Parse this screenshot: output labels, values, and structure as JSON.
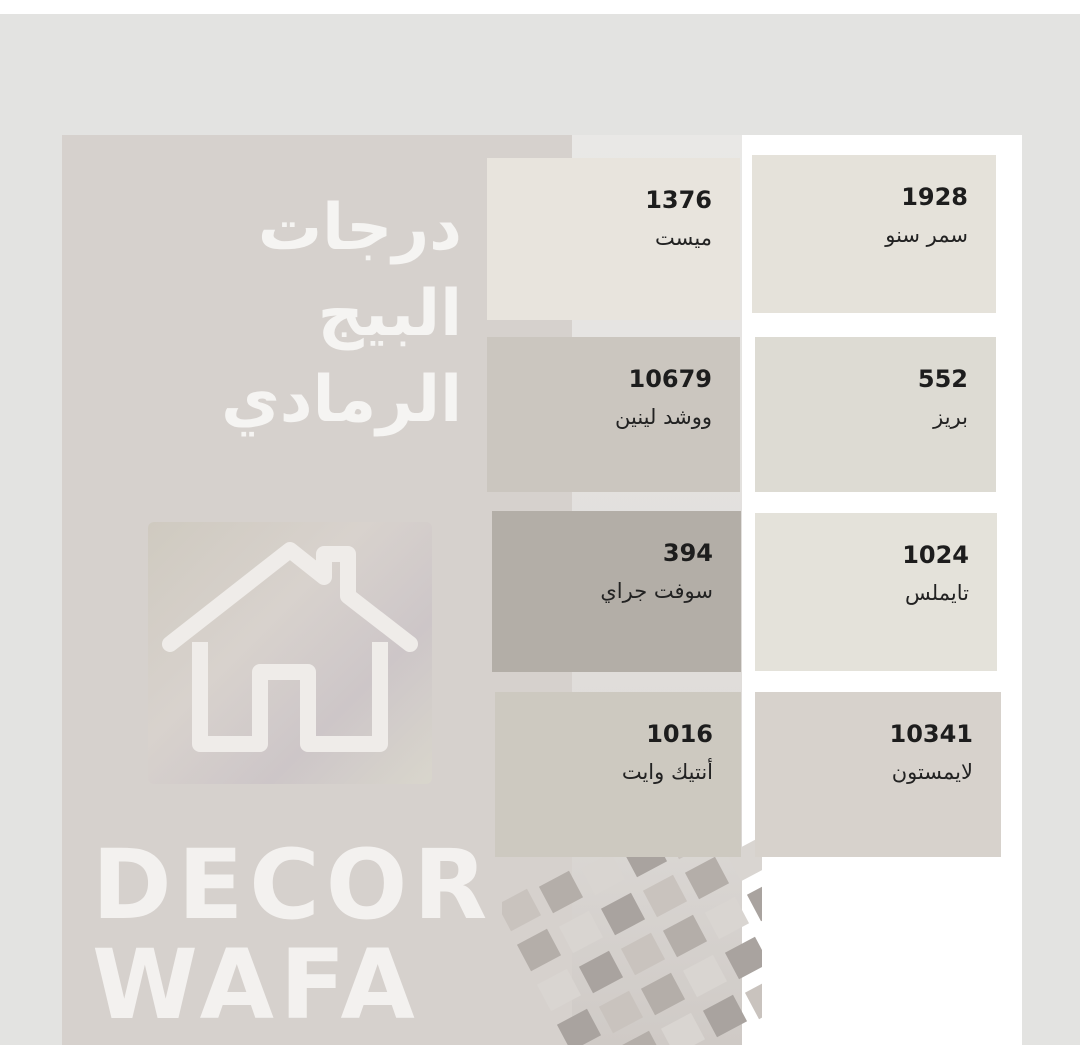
{
  "title": {
    "line1": "درجات",
    "line2": "البيج",
    "line3": "الرمادي"
  },
  "logo": {
    "line1": "DECOR",
    "line2": "WAFA"
  },
  "icons": {
    "house": "house-icon"
  },
  "swatches": [
    {
      "code": "1376",
      "name": "ميست",
      "color": "#e8e4dd"
    },
    {
      "code": "1928",
      "name": "سمر سنو",
      "color": "#e5e2da"
    },
    {
      "code": "10679",
      "name": "ووشد لينين",
      "color": "#cbc6bf"
    },
    {
      "code": "552",
      "name": "بريز",
      "color": "#dddbd3"
    },
    {
      "code": "394",
      "name": "سوفت جراي",
      "color": "#b3aea7"
    },
    {
      "code": "1024",
      "name": "تايملس",
      "color": "#e4e2da"
    },
    {
      "code": "1016",
      "name": "أنتيك وايت",
      "color": "#cdc9c0"
    },
    {
      "code": "10341",
      "name": "لايمستون",
      "color": "#d7d2cc"
    }
  ]
}
